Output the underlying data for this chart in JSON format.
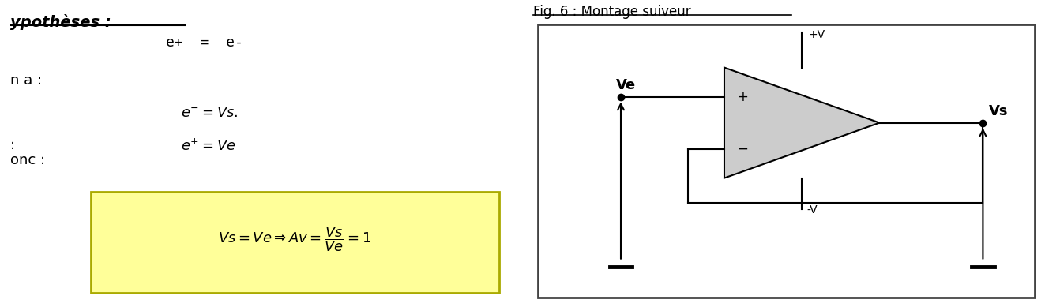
{
  "fig_width": 13.23,
  "fig_height": 3.89,
  "dpi": 100,
  "bg_color": "#ffffff",
  "left_panel": {
    "hypotheses_label": "ypothèses :",
    "na_label": "n a :",
    "colon_label": ":",
    "donc_label": "onc :",
    "eq1": "e+  =  e-",
    "eq2_math": "$e^{-} = Vs.$",
    "eq3_math": "$e^{+} = Ve$",
    "box_eq": "$Vs = Ve  \\Rightarrow  Av = \\dfrac{Vs}{Ve} = 1$",
    "box_color": "#ffff99",
    "box_edge": "#aaaa00"
  },
  "right_panel": {
    "title": "Fig. 6 : Montage suiveur",
    "border_color": "#444444",
    "opamp_fill": "#cccccc",
    "wire_color": "#000000"
  }
}
